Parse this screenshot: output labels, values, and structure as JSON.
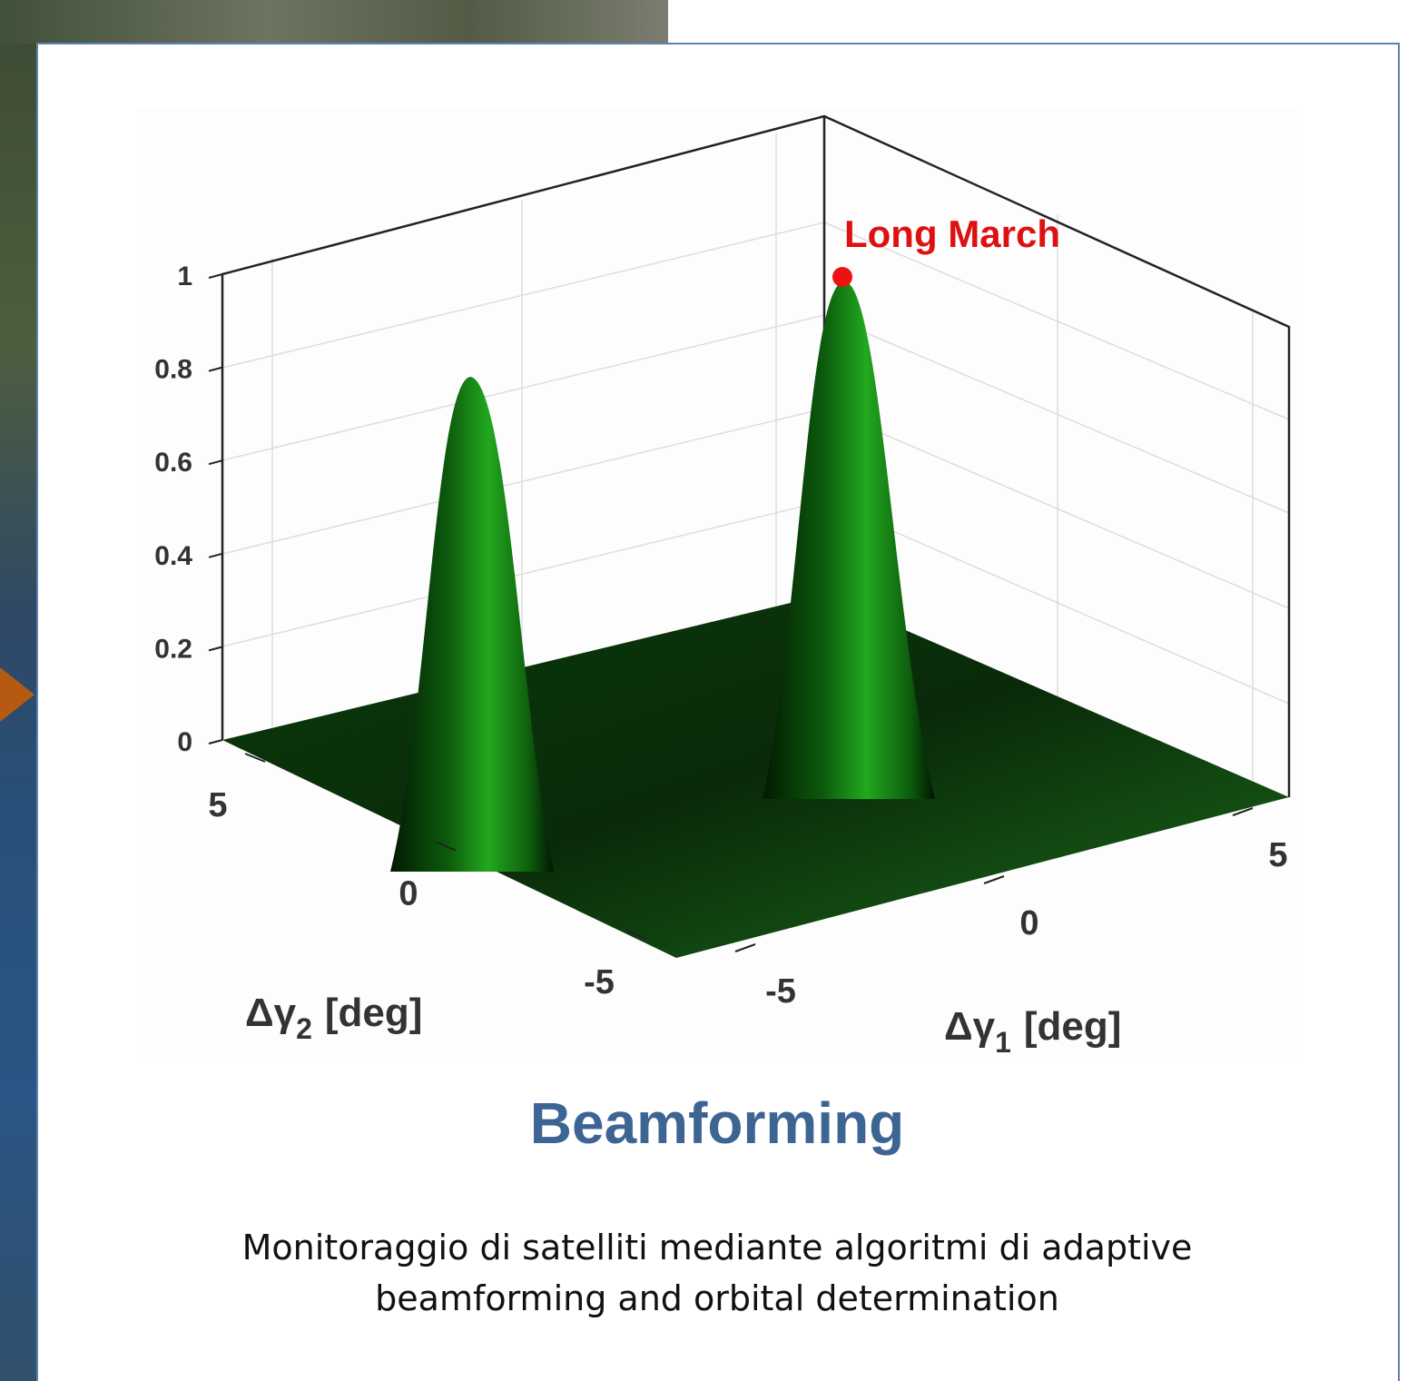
{
  "card": {
    "figure": {
      "annotation": "Long March",
      "z_ticks": [
        0,
        0.2,
        0.4,
        0.6,
        0.8,
        1
      ],
      "y_ticks": [
        5,
        0,
        -5
      ],
      "x_ticks": [
        -5,
        0,
        5
      ],
      "y_label": {
        "symbol": "Δγ",
        "subscript": "2",
        "unit": "[deg]"
      },
      "x_label": {
        "symbol": "Δγ",
        "subscript": "1",
        "unit": "[deg]"
      }
    },
    "title": "Beamforming",
    "description_lines": [
      "Monitoraggio di satelliti mediante algoritmi di adaptive",
      "beamforming and orbital determination"
    ]
  }
}
